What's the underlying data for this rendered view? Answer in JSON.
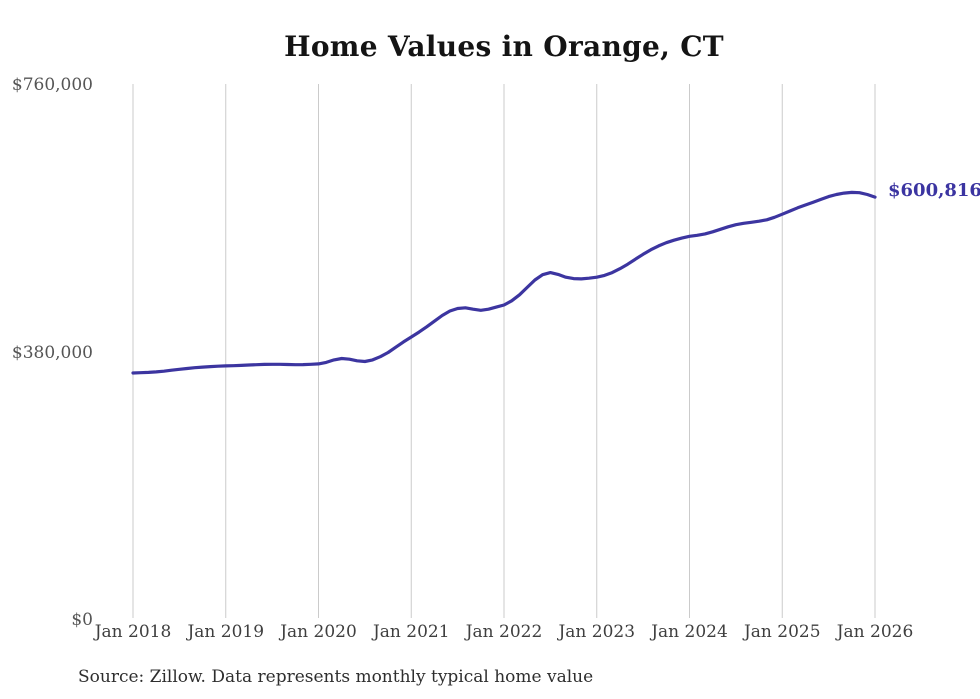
{
  "title": "Home Values in Orange, CT",
  "source_note": "Source: Zillow. Data represents monthly typical home value",
  "colors": {
    "line": "#3c35a0",
    "gridline": "#cbcbcb",
    "end_label": "#3b34a1",
    "y_axis_label": "#555555",
    "x_axis_label": "#3f3f3f",
    "title": "#141414",
    "source": "#2e2e2e",
    "background": "#ffffff"
  },
  "chart_data": {
    "type": "line",
    "title": "Home Values in Orange, CT",
    "legend": "none",
    "grid": "vertical-only",
    "ylim": [
      0,
      760000
    ],
    "y_ticks": [
      {
        "value": 0,
        "label": "$0"
      },
      {
        "value": 380000,
        "label": "$380,000"
      },
      {
        "value": 760000,
        "label": "$760,000"
      }
    ],
    "x_tick_labels": [
      "Jan 2018",
      "Jan 2019",
      "Jan 2020",
      "Jan 2021",
      "Jan 2022",
      "Jan 2023",
      "Jan 2024",
      "Jan 2025",
      "Jan 2026"
    ],
    "x_range": [
      "2018-01",
      "2026-01"
    ],
    "last_value": 600816,
    "last_value_label": "$600,816",
    "series": [
      {
        "name": "Typical home value",
        "color": "#3c35a0",
        "start": "2018-01",
        "interval": "month",
        "values": [
          350900,
          351300,
          351800,
          352400,
          353500,
          354800,
          356100,
          357300,
          358400,
          359300,
          360000,
          360600,
          361000,
          361300,
          361700,
          362200,
          362700,
          363100,
          363300,
          363200,
          362900,
          362700,
          362800,
          363200,
          363800,
          366000,
          369500,
          371500,
          370500,
          368200,
          367200,
          369500,
          374000,
          380000,
          387500,
          395000,
          402000,
          409000,
          416500,
          424500,
          432500,
          439000,
          442500,
          443500,
          441500,
          440000,
          441500,
          444500,
          447500,
          453500,
          462000,
          472500,
          483000,
          490500,
          493500,
          491000,
          487000,
          485000,
          484500,
          485500,
          487000,
          489500,
          493500,
          499000,
          505500,
          512500,
          519500,
          526000,
          531500,
          536000,
          539500,
          542500,
          545000,
          546500,
          548500,
          551500,
          555000,
          558500,
          561500,
          563500,
          565000,
          566500,
          568500,
          572000,
          576500,
          581000,
          585500,
          589500,
          593500,
          597500,
          601500,
          604500,
          606500,
          607500,
          607000,
          604500,
          600816
        ]
      }
    ]
  }
}
